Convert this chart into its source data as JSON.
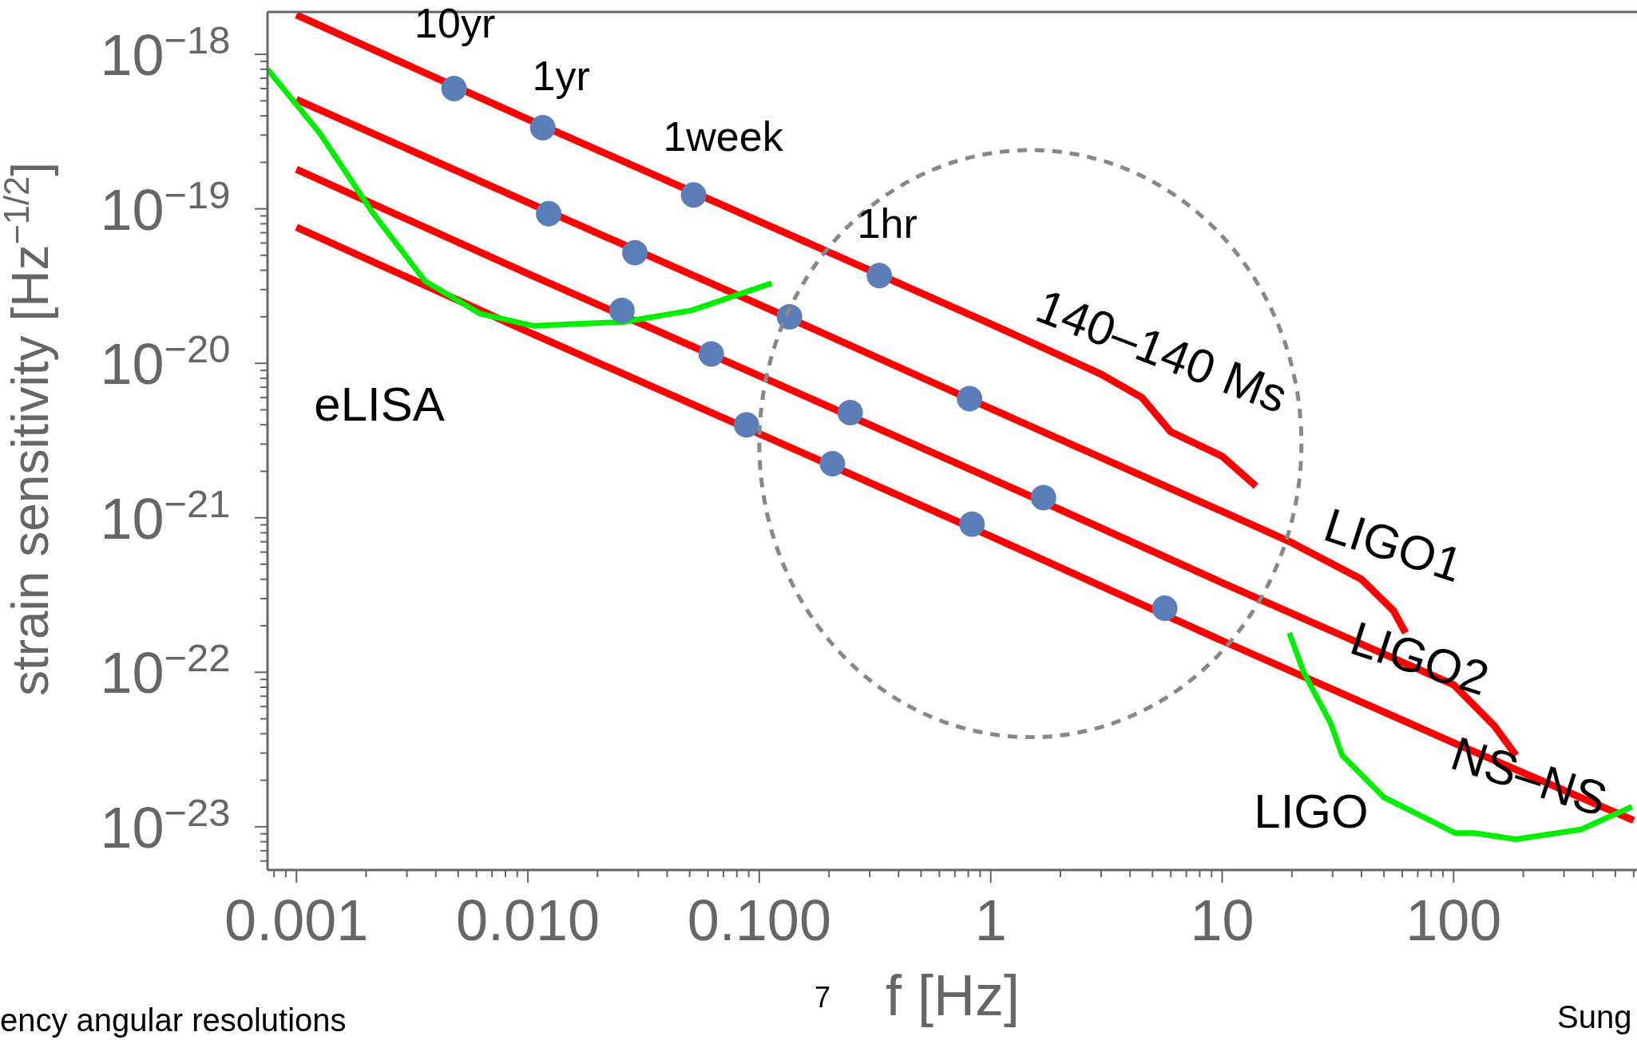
{
  "chart_data": {
    "type": "line",
    "xlabel": "f [Hz]",
    "ylabel": "strain sensitivity [Hz$^{−1/2}$]",
    "log": "xy",
    "xlim": [
      0.00075,
      620
    ],
    "ylim": [
      5.25e-24,
      1.88e-18
    ],
    "xticks": [
      {
        "value": 0.0008,
        "label": null
      },
      {
        "value": 0.0009,
        "label": null
      },
      {
        "value": 0.001,
        "label": "0.001"
      },
      {
        "value": 0.002,
        "label": null
      },
      {
        "value": 0.003,
        "label": null
      },
      {
        "value": 0.004,
        "label": null
      },
      {
        "value": 0.005,
        "label": null
      },
      {
        "value": 0.006,
        "label": null
      },
      {
        "value": 0.007,
        "label": null
      },
      {
        "value": 0.008,
        "label": null
      },
      {
        "value": 0.009,
        "label": null
      },
      {
        "value": 0.01,
        "label": "0.010"
      },
      {
        "value": 0.02,
        "label": null
      },
      {
        "value": 0.03,
        "label": null
      },
      {
        "value": 0.04,
        "label": null
      },
      {
        "value": 0.05,
        "label": null
      },
      {
        "value": 0.06,
        "label": null
      },
      {
        "value": 0.07,
        "label": null
      },
      {
        "value": 0.08,
        "label": null
      },
      {
        "value": 0.09,
        "label": null
      },
      {
        "value": 0.1,
        "label": "0.100"
      },
      {
        "value": 0.2,
        "label": null
      },
      {
        "value": 0.3,
        "label": null
      },
      {
        "value": 0.4,
        "label": null
      },
      {
        "value": 0.5,
        "label": null
      },
      {
        "value": 0.6,
        "label": null
      },
      {
        "value": 0.7,
        "label": null
      },
      {
        "value": 0.8,
        "label": null
      },
      {
        "value": 0.9,
        "label": null
      },
      1,
      {
        "value": 2,
        "label": null
      },
      {
        "value": 3,
        "label": null
      },
      {
        "value": 4,
        "label": null
      },
      {
        "value": 5,
        "label": null
      },
      {
        "value": 6,
        "label": null
      },
      {
        "value": 7,
        "label": null
      },
      {
        "value": 8,
        "label": null
      },
      {
        "value": 9,
        "label": null
      },
      10,
      {
        "value": 20,
        "label": null
      },
      {
        "value": 30,
        "label": null
      },
      {
        "value": 40,
        "label": null
      },
      {
        "value": 50,
        "label": null
      },
      {
        "value": 60,
        "label": null
      },
      {
        "value": 70,
        "label": null
      },
      {
        "value": 80,
        "label": null
      },
      {
        "value": 90,
        "label": null
      },
      100,
      {
        "value": 200,
        "label": null
      },
      {
        "value": 300,
        "label": null
      },
      {
        "value": 400,
        "label": null
      },
      {
        "value": 500,
        "label": null
      },
      {
        "value": 600,
        "label": null
      }
    ],
    "yticks": [
      {
        "value": 6e-24,
        "label": null
      },
      {
        "value": 7e-24,
        "label": null
      },
      {
        "value": 8e-24,
        "label": null
      },
      {
        "value": 9e-24,
        "label": null
      },
      {
        "value": 1e-23,
        "label": "10$^{−23}$"
      },
      {
        "value": 2e-23,
        "label": null
      },
      {
        "value": 3e-23,
        "label": null
      },
      {
        "value": 4e-23,
        "label": null
      },
      {
        "value": 5e-23,
        "label": null
      },
      {
        "value": 6e-23,
        "label": null
      },
      {
        "value": 7e-23,
        "label": null
      },
      {
        "value": 8e-23,
        "label": null
      },
      {
        "value": 9e-23,
        "label": null
      },
      {
        "value": 1e-22,
        "label": "10$^{−22}$"
      },
      {
        "value": 2e-22,
        "label": null
      },
      {
        "value": 3e-22,
        "label": null
      },
      {
        "value": 4e-22,
        "label": null
      },
      {
        "value": 5e-22,
        "label": null
      },
      {
        "value": 6e-22,
        "label": null
      },
      {
        "value": 7e-22,
        "label": null
      },
      {
        "value": 8e-22,
        "label": null
      },
      {
        "value": 9e-22,
        "label": null
      },
      {
        "value": 1e-21,
        "label": "10$^{−21}$"
      },
      {
        "value": 2e-21,
        "label": null
      },
      {
        "value": 3e-21,
        "label": null
      },
      {
        "value": 4e-21,
        "label": null
      },
      {
        "value": 5e-21,
        "label": null
      },
      {
        "value": 6e-21,
        "label": null
      },
      {
        "value": 7e-21,
        "label": null
      },
      {
        "value": 8e-21,
        "label": null
      },
      {
        "value": 9e-21,
        "label": null
      },
      {
        "value": 1e-20,
        "label": "10$^{−20}$"
      },
      {
        "value": 2e-20,
        "label": null
      },
      {
        "value": 3e-20,
        "label": null
      },
      {
        "value": 4e-20,
        "label": null
      },
      {
        "value": 5e-20,
        "label": null
      },
      {
        "value": 6e-20,
        "label": null
      },
      {
        "value": 7e-20,
        "label": null
      },
      {
        "value": 8e-20,
        "label": null
      },
      {
        "value": 9e-20,
        "label": null
      },
      {
        "value": 1e-19,
        "label": "10$^{−19}$"
      },
      {
        "value": 2e-19,
        "label": null
      },
      {
        "value": 3e-19,
        "label": null
      },
      {
        "value": 4e-19,
        "label": null
      },
      {
        "value": 5e-19,
        "label": null
      },
      {
        "value": 6e-19,
        "label": null
      },
      {
        "value": 7e-19,
        "label": null
      },
      {
        "value": 8e-19,
        "label": null
      },
      {
        "value": 9e-19,
        "label": null
      },
      {
        "value": 1e-18,
        "label": "10$^{−18}$"
      }
    ],
    "series": [
      {
        "name": "140–140 Ms",
        "color": "#ff0000",
        "marker": "none",
        "line_style": "solid",
        "x": [
          0.001,
          0.01,
          0.1,
          1,
          3,
          4.5,
          6,
          10,
          14
        ],
        "values": [
          1.8e-18,
          3.8e-19,
          8.3e-20,
          1.8e-20,
          8.5e-21,
          6e-21,
          3.6e-21,
          2.5e-21,
          1.6e-21
        ]
      },
      {
        "name": "LIGO1",
        "color": "#ff0000",
        "marker": "none",
        "line_style": "solid",
        "x": [
          0.001,
          0.01,
          0.1,
          1,
          10,
          20,
          40,
          55,
          62
        ],
        "values": [
          5.1e-19,
          1.1e-19,
          2.4e-20,
          5.1e-21,
          1.1e-21,
          6.9e-22,
          4e-22,
          2.5e-22,
          1.8e-22
        ]
      },
      {
        "name": "LIGO2",
        "color": "#ff0000",
        "marker": "none",
        "line_style": "solid",
        "x": [
          0.001,
          0.01,
          0.1,
          1,
          10,
          100,
          150,
          186
        ],
        "values": [
          1.8e-19,
          3.8e-20,
          8.3e-21,
          1.8e-21,
          3.8e-22,
          8.3e-23,
          4.5e-23,
          2.9e-23
        ]
      },
      {
        "name": "NS–NS",
        "color": "#ff0000",
        "marker": "none",
        "line_style": "solid",
        "x": [
          0.001,
          0.01,
          0.1,
          1,
          10,
          100,
          600
        ],
        "values": [
          7.6e-20,
          1.6e-20,
          3.5e-21,
          7.6e-22,
          1.6e-22,
          3.5e-23,
          1.1e-23
        ]
      },
      {
        "color": "#00ee00",
        "marker": "none",
        "line_style": "solid",
        "x": [
          0.00075,
          0.00126,
          0.00214,
          0.0036,
          0.0062,
          0.0105,
          0.0257,
          0.051,
          0.113
        ],
        "values": [
          8e-19,
          3.1e-19,
          9.4e-20,
          3.4e-20,
          2.1e-20,
          1.75e-20,
          1.85e-20,
          2.2e-20,
          3.3e-20
        ]
      },
      {
        "color": "#00ee00",
        "marker": "none",
        "line_style": "solid",
        "x": [
          19.5,
          22.5,
          29.4,
          33,
          50,
          102,
          123,
          186,
          355,
          590
        ],
        "values": [
          1.8e-22,
          1e-22,
          4.7e-23,
          2.9e-23,
          1.55e-23,
          9.1e-24,
          9.1e-24,
          8.3e-24,
          9.6e-24,
          1.35e-23
        ]
      },
      {
        "type": "scatter",
        "color": "#5b7db8",
        "marker": "circle",
        "x": [
          0.0048,
          0.0116,
          0.052,
          0.33,
          0.0123,
          0.029,
          0.135,
          0.81,
          0.0255,
          0.062,
          0.247,
          1.69,
          0.088,
          0.207,
          0.83,
          5.65
        ],
        "values": [
          6e-19,
          3.35e-19,
          1.23e-19,
          3.7e-20,
          9.3e-20,
          5.2e-20,
          2e-20,
          5.9e-21,
          2.2e-20,
          1.15e-20,
          4.8e-21,
          1.35e-21,
          4e-21,
          2.24e-21,
          9.1e-22,
          2.6e-22
        ]
      }
    ],
    "annotations": [
      {
        "text": "10yr",
        "x": 0.0048,
        "y": 6e-19
      },
      {
        "text": "1yr",
        "x": 0.0116,
        "y": 3.35e-19
      },
      {
        "text": "1week",
        "x": 0.052,
        "y": 1.23e-19
      },
      {
        "text": "1hr",
        "x": 0.33,
        "y": 3.7e-20
      },
      "eLISA",
      "LIGO",
      "ency angular resolutions",
      "7",
      "Sung"
    ]
  }
}
